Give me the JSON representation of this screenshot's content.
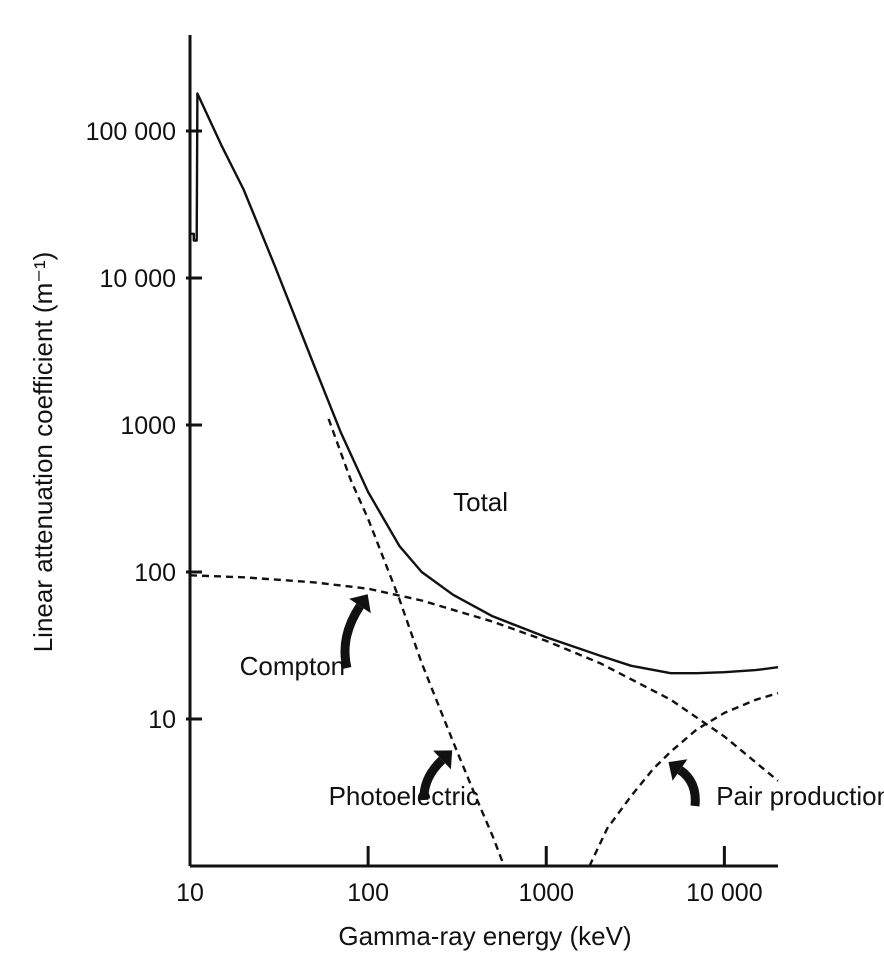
{
  "chart_data": {
    "type": "line",
    "xlabel": "Gamma-ray energy (keV)",
    "ylabel": "Linear attenuation coefficient (m⁻¹)",
    "x_scale": "log",
    "y_scale": "log",
    "xlim": [
      10,
      20000
    ],
    "ylim": [
      1,
      450000
    ],
    "x_ticks": [
      10,
      100,
      1000,
      10000
    ],
    "x_tick_labels": [
      "10",
      "100",
      "1000",
      "10 000"
    ],
    "y_ticks": [
      10,
      100,
      1000,
      10000,
      100000
    ],
    "y_tick_labels": [
      "10",
      "100",
      "1000",
      "10 000",
      "100 000"
    ],
    "grid": false,
    "legend": "none",
    "series": [
      {
        "name": "Total",
        "style": "solid",
        "x": [
          10,
          10.5,
          10.5,
          10.9,
          11,
          15,
          20,
          30,
          50,
          70,
          100,
          150,
          200,
          300,
          500,
          1000,
          2000,
          3000,
          5000,
          7000,
          10000,
          15000,
          20000
        ],
        "y": [
          20000,
          20000,
          18000,
          18000,
          180000,
          80000,
          40000,
          12000,
          2500,
          900,
          350,
          150,
          100,
          70,
          50,
          36,
          27,
          23,
          20.5,
          20.5,
          20.8,
          21.5,
          22.5
        ]
      },
      {
        "name": "Compton",
        "style": "dashed",
        "x": [
          10,
          20,
          50,
          100,
          200,
          500,
          1000,
          2000,
          5000,
          10000,
          20000
        ],
        "y": [
          95,
          92,
          85,
          77,
          64,
          46,
          34,
          24,
          13.5,
          7.6,
          3.8
        ]
      },
      {
        "name": "Photoelectric",
        "style": "dashed",
        "x": [
          60,
          80,
          100,
          150,
          200,
          300,
          400,
          500,
          580
        ],
        "y": [
          1100,
          420,
          230,
          65,
          24,
          7,
          3,
          1.6,
          1
        ]
      },
      {
        "name": "Pair production",
        "style": "dashed",
        "x": [
          1750,
          2200,
          3000,
          4000,
          5000,
          7000,
          10000,
          15000,
          20000
        ],
        "y": [
          1,
          1.8,
          3,
          4.6,
          6,
          8.5,
          11,
          13.5,
          15
        ]
      }
    ],
    "annotations": [
      {
        "text": "Total",
        "x": 300,
        "y": 260
      },
      {
        "text": "Compton",
        "x": 19,
        "y": 20
      },
      {
        "text": "Photoelectric",
        "x": 60,
        "y": 2.6
      },
      {
        "text": "Pair production",
        "x": 9000,
        "y": 2.6
      }
    ]
  },
  "colors": {
    "line": "#111111",
    "background": "#ffffff"
  }
}
